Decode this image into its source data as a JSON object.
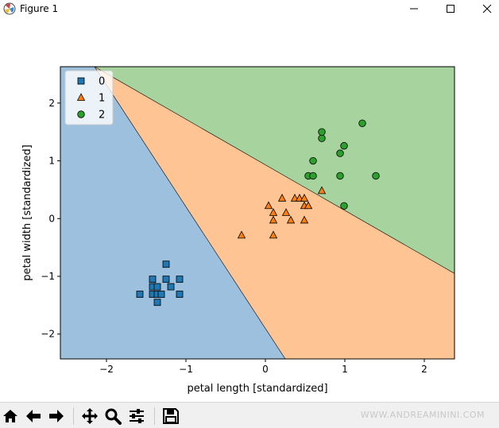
{
  "window": {
    "title": "Figure 1",
    "controls": {
      "minimize": "minimize",
      "maximize": "maximize",
      "close": "close"
    }
  },
  "colors": {
    "region0": "#9cc0dd",
    "region1": "#fec494",
    "region2": "#a7d49e",
    "class0": "#1f77b4",
    "class1": "#ff7f0e",
    "class2": "#2ca02c"
  },
  "toolbar": {
    "buttons": [
      "home-icon",
      "back-arrow-icon",
      "forward-arrow-icon",
      "pan-icon",
      "zoom-icon",
      "configure-subplots-icon",
      "save-icon"
    ],
    "watermark": "WWW.ANDREAMININI.COM"
  },
  "chart_data": {
    "type": "scatter",
    "title": "",
    "xlabel": "petal length [standardized]",
    "ylabel": "petal width [standardized]",
    "xlim": [
      -2.58,
      2.38
    ],
    "ylim": [
      -2.43,
      2.63
    ],
    "xticks": [
      -2,
      -1,
      0,
      1,
      2
    ],
    "yticks": [
      -2,
      -1,
      0,
      1,
      2
    ],
    "xtick_labels": [
      "−2",
      "−1",
      "0",
      "1",
      "2"
    ],
    "ytick_labels": [
      "−2",
      "−1",
      "0",
      "1",
      "2"
    ],
    "grid": false,
    "legend": {
      "placement": "upper-left"
    },
    "boundaries": [
      {
        "between": [
          "0",
          "1"
        ],
        "points": [
          [
            -2.15,
            2.63
          ],
          [
            0.25,
            -2.43
          ]
        ]
      },
      {
        "between": [
          "1",
          "2"
        ],
        "points": [
          [
            -2.15,
            2.63
          ],
          [
            2.38,
            -0.95
          ]
        ]
      }
    ],
    "series": [
      {
        "name": "0",
        "marker": "square",
        "points": [
          [
            -1.58,
            -1.31
          ],
          [
            -1.42,
            -1.18
          ],
          [
            -1.42,
            -1.31
          ],
          [
            -1.42,
            -1.05
          ],
          [
            -1.36,
            -1.45
          ],
          [
            -1.36,
            -1.31
          ],
          [
            -1.36,
            -1.18
          ],
          [
            -1.31,
            -1.31
          ],
          [
            -1.25,
            -1.05
          ],
          [
            -1.25,
            -0.79
          ],
          [
            -1.19,
            -1.18
          ],
          [
            -1.08,
            -1.05
          ],
          [
            -1.08,
            -1.31
          ]
        ]
      },
      {
        "name": "1",
        "marker": "triangle",
        "points": [
          [
            -0.3,
            -0.29
          ],
          [
            0.04,
            0.22
          ],
          [
            0.1,
            0.1
          ],
          [
            0.1,
            -0.03
          ],
          [
            0.1,
            -0.29
          ],
          [
            0.21,
            0.35
          ],
          [
            0.26,
            0.1
          ],
          [
            0.32,
            -0.03
          ],
          [
            0.37,
            0.35
          ],
          [
            0.43,
            0.35
          ],
          [
            0.49,
            0.35
          ],
          [
            0.49,
            0.22
          ],
          [
            0.49,
            -0.03
          ],
          [
            0.54,
            0.22
          ],
          [
            0.71,
            0.48
          ]
        ]
      },
      {
        "name": "2",
        "marker": "circle",
        "points": [
          [
            0.54,
            0.74
          ],
          [
            0.6,
            0.74
          ],
          [
            0.6,
            1.0
          ],
          [
            0.71,
            1.39
          ],
          [
            0.71,
            1.5
          ],
          [
            0.94,
            1.13
          ],
          [
            0.94,
            0.74
          ],
          [
            0.99,
            1.26
          ],
          [
            0.99,
            0.22
          ],
          [
            1.22,
            1.65
          ],
          [
            1.39,
            0.74
          ]
        ]
      }
    ]
  }
}
